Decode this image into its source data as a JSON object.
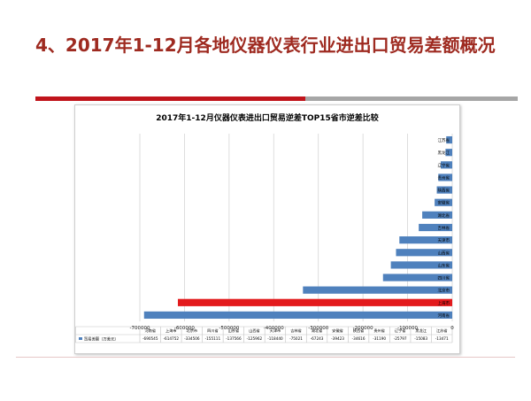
{
  "slide": {
    "title": "4、2017年1-12月各地仪器仪表行业进出口贸易差额概况"
  },
  "colors": {
    "title": "#9e2a20",
    "bar": "#4f81bd",
    "highlight": "#e31a1c",
    "accent": "#c0141b"
  },
  "chart_data": {
    "type": "bar",
    "orientation": "horizontal",
    "title": "2017年1-12月仪器仪表进出口贸易逆差TOP15省市逆差比较",
    "series": [
      {
        "name": "贸易差额（万美元）",
        "values": [
          -690545,
          -614752,
          -334506,
          -155111,
          -137566,
          -125962,
          -118440,
          -75021,
          -67243,
          -39423,
          -34616,
          -31190,
          -25797,
          -15083,
          -13471
        ]
      }
    ],
    "categories": [
      "河南省",
      "上海市",
      "北京市",
      "四川省",
      "山东省",
      "山西省",
      "天津市",
      "吉林省",
      "湖北省",
      "安徽省",
      "陕西省",
      "贵州省",
      "辽宁省",
      "黑龙江",
      "江苏省"
    ],
    "highlight_category": "上海市",
    "xlim": [
      -700000,
      0
    ],
    "x_ticks": [
      -700000,
      -600000,
      -500000,
      -400000,
      -300000,
      -200000,
      -100000,
      0
    ],
    "grid": true,
    "legend": "bottom-left"
  }
}
